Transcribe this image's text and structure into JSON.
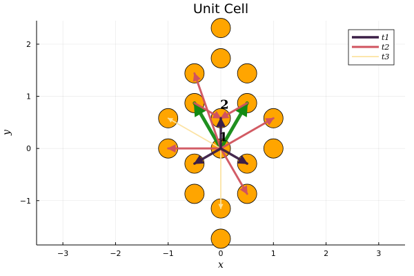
{
  "chart_data": {
    "type": "scatter",
    "title": "Unit Cell",
    "xlabel": "x",
    "ylabel": "y",
    "xlim": [
      -3.5,
      3.5
    ],
    "ylim": [
      -1.85,
      2.45
    ],
    "xticks": [
      -3,
      -2,
      -1,
      0,
      1,
      2,
      3
    ],
    "yticks": [
      -1,
      0,
      1,
      2
    ],
    "grid": true,
    "legend_position": "top-right",
    "point_color": "#FFA500",
    "lattice_points": [
      [
        0,
        2.31
      ],
      [
        0,
        1.73
      ],
      [
        -0.5,
        1.44
      ],
      [
        0.5,
        1.44
      ],
      [
        -0.5,
        0.87
      ],
      [
        0.5,
        0.87
      ],
      [
        -1,
        0.58
      ],
      [
        1,
        0.58
      ],
      [
        0,
        0.58
      ],
      [
        -1,
        0
      ],
      [
        1,
        0
      ],
      [
        0,
        0
      ],
      [
        -0.5,
        -0.29
      ],
      [
        0.5,
        -0.29
      ],
      [
        -0.5,
        -0.87
      ],
      [
        0.5,
        -0.87
      ],
      [
        0,
        -1.15
      ],
      [
        0,
        -1.73
      ]
    ],
    "series": [
      {
        "name": "t1",
        "color": "#3B1F47",
        "width": 3.5,
        "vectors": [
          [
            0,
            0,
            0,
            0.58
          ],
          [
            0,
            0,
            -0.5,
            -0.29
          ],
          [
            0,
            0,
            0.5,
            -0.29
          ]
        ]
      },
      {
        "name": "t2",
        "color": "#D0535F",
        "width": 3,
        "vectors": [
          [
            0,
            0,
            -1,
            0
          ],
          [
            0,
            0,
            1,
            0.58
          ],
          [
            0,
            0,
            -0.5,
            1.44
          ],
          [
            0,
            0,
            0.5,
            -0.87
          ],
          [
            0.5,
            0.87,
            -0.5,
            -0.29
          ],
          [
            -0.5,
            0.87,
            0.5,
            -0.29
          ]
        ]
      },
      {
        "name": "t3",
        "color": "#FCE29F",
        "width": 1.8,
        "vectors": [
          [
            0,
            0,
            -1,
            0.58
          ],
          [
            0,
            0,
            1,
            0.58
          ],
          [
            0,
            0,
            0,
            -1.15
          ]
        ]
      }
    ],
    "unlabeled_vectors": [
      {
        "color": "#138A13",
        "width": 5,
        "vectors": [
          [
            0,
            0,
            -0.5,
            0.87
          ],
          [
            0,
            0,
            0.5,
            0.87
          ]
        ]
      }
    ],
    "site_labels": [
      {
        "text": "1",
        "x": 0.05,
        "y": 0.14
      },
      {
        "text": "2",
        "x": 0.07,
        "y": 0.76
      }
    ]
  }
}
